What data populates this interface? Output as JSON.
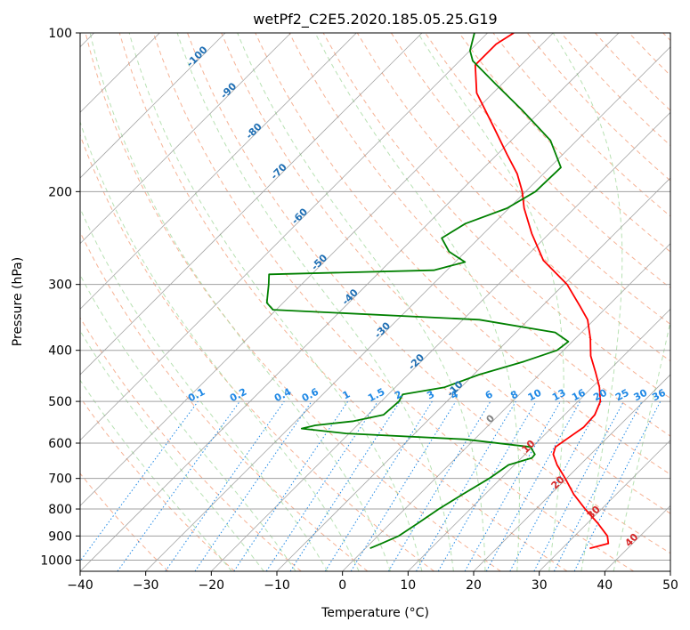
{
  "chart_data": {
    "type": "skew-t",
    "title": "wetPf2_C2E5.2020.185.05.25.G19",
    "xlabel": "Temperature (°C)",
    "ylabel": "Pressure (hPa)",
    "xlim": [
      -40,
      50
    ],
    "ylim": [
      1050,
      100
    ],
    "y_scale": "log",
    "grid": true,
    "x_ticks": [
      -40,
      -30,
      -20,
      -10,
      0,
      10,
      20,
      30,
      40,
      50
    ],
    "y_ticks": [
      100,
      200,
      300,
      400,
      500,
      600,
      700,
      800,
      900,
      1000
    ],
    "series": [
      {
        "color": "#ff0000",
        "points": [
          [
            950,
            34.2
          ],
          [
            930,
            36.3
          ],
          [
            900,
            35.0
          ],
          [
            850,
            31.5
          ],
          [
            800,
            27.5
          ],
          [
            750,
            23.5
          ],
          [
            700,
            19.8
          ],
          [
            660,
            16.5
          ],
          [
            630,
            14.3
          ],
          [
            610,
            13.5
          ],
          [
            590,
            14.0
          ],
          [
            560,
            14.8
          ],
          [
            530,
            14.6
          ],
          [
            500,
            13.4
          ],
          [
            470,
            11.1
          ],
          [
            440,
            8.2
          ],
          [
            410,
            5.0
          ],
          [
            380,
            2.3
          ],
          [
            350,
            -1.0
          ],
          [
            330,
            -4.2
          ],
          [
            300,
            -9.5
          ],
          [
            270,
            -16.8
          ],
          [
            240,
            -22.7
          ],
          [
            215,
            -27.7
          ],
          [
            200,
            -30.5
          ],
          [
            185,
            -34.0
          ],
          [
            170,
            -38.5
          ],
          [
            150,
            -45.0
          ],
          [
            130,
            -52.5
          ],
          [
            115,
            -57.0
          ],
          [
            105,
            -57.0
          ],
          [
            100,
            -56.0
          ]
        ]
      },
      {
        "color": "#008000",
        "points": [
          [
            950,
            0.7
          ],
          [
            930,
            1.7
          ],
          [
            900,
            3.2
          ],
          [
            850,
            4.2
          ],
          [
            800,
            5.2
          ],
          [
            750,
            6.6
          ],
          [
            700,
            8.2
          ],
          [
            660,
            9.1
          ],
          [
            640,
            11.6
          ],
          [
            630,
            11.5
          ],
          [
            610,
            9.7
          ],
          [
            590,
            -1.5
          ],
          [
            575,
            -20.5
          ],
          [
            563,
            -28.0
          ],
          [
            555,
            -26.4
          ],
          [
            545,
            -21.2
          ],
          [
            530,
            -17.6
          ],
          [
            500,
            -17.3
          ],
          [
            485,
            -17.8
          ],
          [
            470,
            -12.5
          ],
          [
            445,
            -9.2
          ],
          [
            420,
            -4.3
          ],
          [
            400,
            -1.0
          ],
          [
            385,
            -0.6
          ],
          [
            370,
            -4.0
          ],
          [
            350,
            -17.5
          ],
          [
            335,
            -50.5
          ],
          [
            325,
            -52.5
          ],
          [
            300,
            -55.0
          ],
          [
            287,
            -56.5
          ],
          [
            282,
            -32.0
          ],
          [
            272,
            -28.5
          ],
          [
            260,
            -32.5
          ],
          [
            245,
            -35.7
          ],
          [
            230,
            -34.3
          ],
          [
            215,
            -30.3
          ],
          [
            200,
            -28.5
          ],
          [
            180,
            -28.3
          ],
          [
            160,
            -34.0
          ],
          [
            140,
            -43.0
          ],
          [
            125,
            -51.0
          ],
          [
            113,
            -58.0
          ],
          [
            108,
            -60.0
          ],
          [
            100,
            -62.0
          ]
        ]
      }
    ],
    "annotations": {
      "dry_adiabats": [
        -100,
        -90,
        -80,
        -70,
        -60,
        -50,
        -40,
        -30,
        -20,
        -10,
        0,
        10,
        20,
        30,
        40
      ],
      "mixing_ratios": [
        "0.1",
        "0.2",
        "0.4",
        "0.6",
        "1",
        "1.5",
        "2",
        "3",
        "4",
        "6",
        "8",
        "10",
        "13",
        "16",
        "20",
        "25",
        "30",
        "36"
      ]
    },
    "colors": {
      "temperature": "#ff0000",
      "dewpoint": "#008000",
      "dry_adiabat": "#f4a582",
      "moist_adiabat": "#a6d9a0",
      "mixing_ratio": "#1e88e5",
      "isotherm": "#808080"
    }
  }
}
